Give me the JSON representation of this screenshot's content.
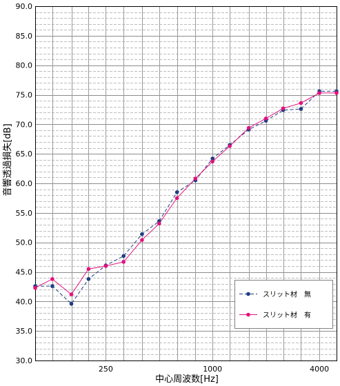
{
  "chart_data": {
    "type": "line",
    "xlabel": "中心周波数[Hz]",
    "ylabel": "音響透過損失[dB]",
    "x_scale": "log",
    "xlim": [
      100,
      5000
    ],
    "ylim": [
      30,
      90
    ],
    "x_tick_labels": [
      "250",
      "1000",
      "4000"
    ],
    "y_tick_labels": [
      "30.0",
      "35.0",
      "40.0",
      "45.0",
      "50.0",
      "55.0",
      "60.0",
      "65.0",
      "70.0",
      "75.0",
      "80.0",
      "85.0",
      "90.0"
    ],
    "grid": true,
    "legend": "bottom-right",
    "x": [
      100,
      125,
      160,
      200,
      250,
      315,
      400,
      500,
      630,
      800,
      1000,
      1250,
      1600,
      2000,
      2500,
      3150,
      4000,
      5000
    ],
    "series": [
      {
        "name": "スリット材　無",
        "color": "#1f3b82",
        "line_style": "dashed",
        "marker": "circle",
        "values": [
          42.6,
          42.6,
          39.6,
          43.8,
          46.1,
          47.7,
          51.4,
          53.6,
          58.5,
          60.5,
          64.2,
          66.5,
          69.1,
          70.6,
          72.4,
          72.6,
          75.6,
          75.6
        ]
      },
      {
        "name": "スリット材　有",
        "color": "#e4117d",
        "line_style": "solid",
        "marker": "circle",
        "values": [
          42.3,
          43.8,
          41.2,
          45.5,
          46.0,
          46.7,
          50.4,
          53.2,
          57.5,
          60.8,
          63.7,
          66.3,
          69.4,
          71.0,
          72.7,
          73.6,
          75.3,
          75.3
        ]
      }
    ]
  }
}
